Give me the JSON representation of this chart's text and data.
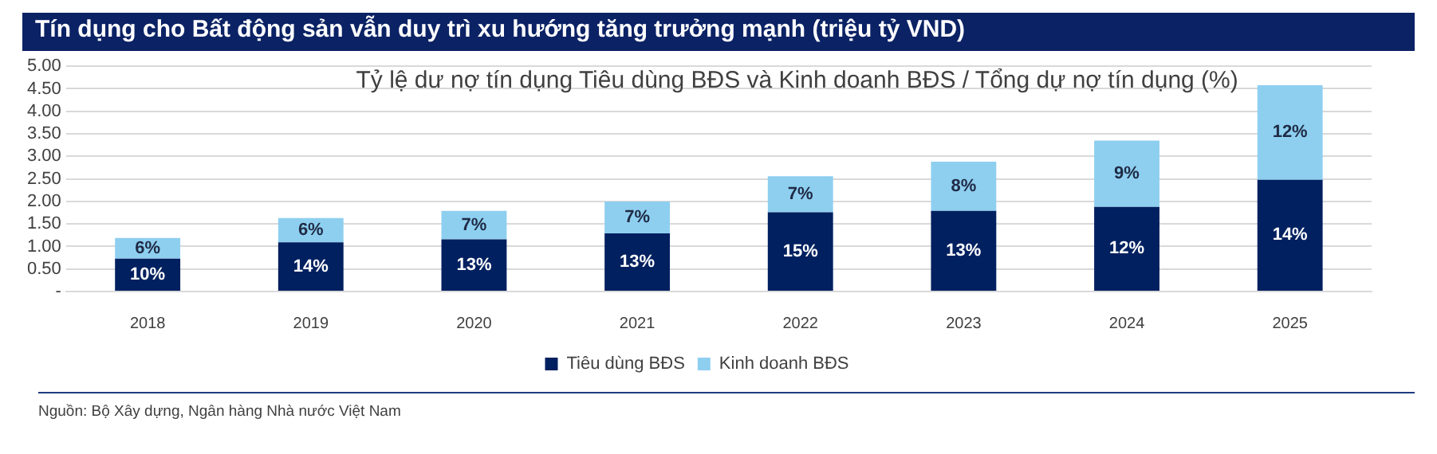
{
  "chart_data": {
    "type": "bar",
    "title": "Tín dụng cho Bất động sản vẫn duy trì xu hướng tăng trưởng mạnh (triệu tỷ VND)",
    "subtitle": "Tỷ lệ dư nợ tín dụng Tiêu dùng BĐS và Kinh doanh BĐS / Tổng dự nợ tín dụng (%)",
    "categories": [
      "2018",
      "2019",
      "2020",
      "2021",
      "2022",
      "2023",
      "2024",
      "2025"
    ],
    "stacked": true,
    "series": [
      {
        "name": "Tiêu dùng BĐS",
        "color": "#002060",
        "values": [
          0.73,
          1.09,
          1.16,
          1.29,
          1.76,
          1.79,
          1.88,
          2.48
        ]
      },
      {
        "name": "Kinh doanh BĐS",
        "color": "#8ecff0",
        "values": [
          0.46,
          0.54,
          0.63,
          0.71,
          0.8,
          1.09,
          1.47,
          2.1
        ]
      }
    ],
    "ylim": [
      0,
      5
    ],
    "yticks": [
      {
        "value": 0,
        "label": "-"
      },
      {
        "value": 0.5,
        "label": "0.50"
      },
      {
        "value": 1,
        "label": "1.00"
      },
      {
        "value": 1.5,
        "label": "1.50"
      },
      {
        "value": 2,
        "label": "2.00"
      },
      {
        "value": 2.5,
        "label": "2.50"
      },
      {
        "value": 3,
        "label": "3.00"
      },
      {
        "value": 3.5,
        "label": "3.50"
      },
      {
        "value": 4,
        "label": "4.00"
      },
      {
        "value": 4.5,
        "label": "4.50"
      },
      {
        "value": 5,
        "label": "5.00"
      }
    ],
    "grid": "y",
    "legend": "bottom",
    "annotations": [
      "Nguồn: Bộ Xây dựng, Ngân hàng Nhà nước Việt Nam",
      {
        "text": "10%",
        "x": "2018",
        "y": 0.73
      },
      {
        "text": "14%",
        "x": "2019",
        "y": 1.09
      },
      {
        "text": "13%",
        "x": "2020",
        "y": 1.16
      },
      {
        "text": "13%",
        "x": "2021",
        "y": 1.29
      },
      {
        "text": "15%",
        "x": "2022",
        "y": 1.76
      },
      {
        "text": "13%",
        "x": "2023",
        "y": 1.79
      },
      {
        "text": "12%",
        "x": "2024",
        "y": 1.88
      },
      {
        "text": "14%",
        "x": "2025",
        "y": 2.48
      },
      {
        "text": "6%",
        "x": "2018",
        "y": 1.19
      },
      {
        "text": "6%",
        "x": "2019",
        "y": 1.63
      },
      {
        "text": "7%",
        "x": "2020",
        "y": 1.79
      },
      {
        "text": "7%",
        "x": "2021",
        "y": 2.0
      },
      {
        "text": "7%",
        "x": "2022",
        "y": 2.56
      },
      {
        "text": "8%",
        "x": "2023",
        "y": 2.88
      },
      {
        "text": "9%",
        "x": "2024",
        "y": 3.35
      },
      {
        "text": "12%",
        "x": "2025",
        "y": 4.58
      }
    ]
  }
}
